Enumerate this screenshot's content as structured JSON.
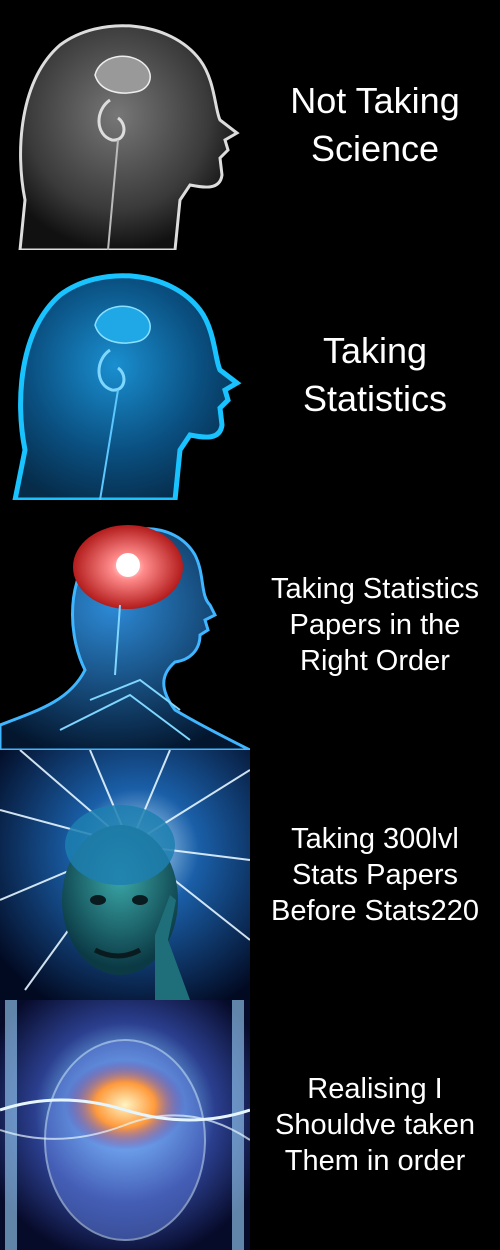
{
  "meme": {
    "panels": [
      {
        "caption": "Not Taking\nScience",
        "image": "x-ray-head-brain-icon"
      },
      {
        "caption": "Taking\nStatistics",
        "image": "blue-glowing-head-brain-icon"
      },
      {
        "caption": "Taking Statistics\nPapers in the\nRight Order",
        "image": "glowing-red-brain-nervous-system-icon"
      },
      {
        "caption": "Taking 300lvl\nStats Papers\nBefore Stats220",
        "image": "man-tapping-head-light-rays-icon"
      },
      {
        "caption": "Realising I\nShouldve taken\nThem in order",
        "image": "cosmic-galaxy-brain-icon"
      }
    ]
  },
  "colors": {
    "background": "#000000",
    "caption": "#ffffff",
    "cyan": "#19c3ff",
    "brain_red": "#ff3b3b"
  }
}
